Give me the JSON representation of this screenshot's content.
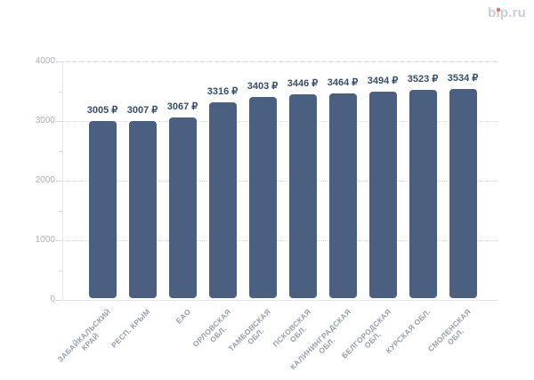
{
  "logo": {
    "text": "bip.ru",
    "text_color": "#c7ced8",
    "dot_color": "#f0684d"
  },
  "chart_data": {
    "type": "bar",
    "title": "",
    "categories": [
      "ЗАБАЙКАЛЬСКИЙ КРАЙ",
      "РЕСП. КРЫМ",
      "ЕАО",
      "ОРЛОВСКАЯ ОБЛ.",
      "ТАМБОВСКАЯ ОБЛ.",
      "ПСКОВСКАЯ ОБЛ.",
      "КАЛИНИНГРАДСКАЯ ОБЛ.",
      "БЕЛГОРОДСКАЯ ОБЛ.",
      "КУРСКАЯ ОБЛ.",
      "СМОЛЕНСКАЯ ОБЛ."
    ],
    "category_label_lines": [
      [
        "ЗАБАЙКАЛЬСКИЙ",
        "КРАЙ"
      ],
      [
        "РЕСП. КРЫМ"
      ],
      [
        "ЕАО"
      ],
      [
        "ОРЛОВСКАЯ",
        "ОБЛ."
      ],
      [
        "ТАМБОВСКАЯ",
        "ОБЛ."
      ],
      [
        "ПСКОВСКАЯ",
        "ОБЛ."
      ],
      [
        "КАЛИНИНГРАДСКАЯ",
        "ОБЛ."
      ],
      [
        "БЕЛГОРОДСКАЯ",
        "ОБЛ."
      ],
      [
        "КУРСКАЯ ОБЛ."
      ],
      [
        "СМОЛЕНСКАЯ",
        "ОБЛ."
      ]
    ],
    "values": [
      3005,
      3007,
      3067,
      3316,
      3403,
      3446,
      3464,
      3494,
      3523,
      3534
    ],
    "unit": "₽",
    "value_labels": [
      "3005 ₽",
      "3007 ₽",
      "3067 ₽",
      "3316 ₽",
      "3403 ₽",
      "3446 ₽",
      "3464 ₽",
      "3494 ₽",
      "3523 ₽",
      "3534 ₽"
    ],
    "xlabel": "",
    "ylabel": "",
    "ylim": [
      0,
      4000
    ],
    "yticks": [
      0,
      1000,
      2000,
      3000,
      4000
    ],
    "minor_ytick_step": 500,
    "grid": "dotted horizontal, behind bars",
    "legend": "none",
    "bar_color": "#4b6080",
    "value_label_color": "#374e69",
    "ytick_label_color": "#a9b2bd",
    "xtick_label_color": "#95a0ae"
  }
}
